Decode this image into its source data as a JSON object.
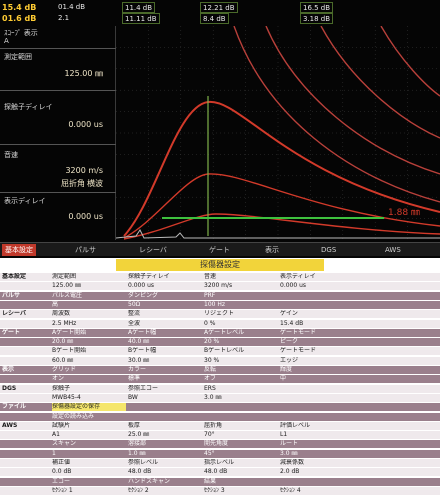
{
  "header": {
    "row1": [
      "15.4 dB",
      "01.4 dB",
      "11.4 dB",
      "12.21 dB",
      "16.5 dB"
    ],
    "row2": [
      "01.6 dB",
      "2.1",
      "11.11 dB",
      "8.4 dB",
      "3.18 dB"
    ]
  },
  "sidebar": {
    "mode_label": "ｽｺｰﾌﾟ 表示",
    "mode_value": "A",
    "range_label": "測定範囲",
    "range_value": "125.00 ㎜",
    "probe_delay_label": "探触子ディレイ",
    "probe_delay_value": "0.000 us",
    "velocity_label": "音速",
    "velocity_value": "3200 m/s",
    "angle_label": "屈折角",
    "angle_value": "横波",
    "display_delay_label": "表示ディレイ",
    "display_delay_value": "0.000 us"
  },
  "plot": {
    "gate_readout": "1.88 ㎜",
    "colors": {
      "echo": "#d23a2a",
      "curve": "#b8403a",
      "gate": "#3ec23e",
      "cursor": "#7fb04a",
      "grid": "#3a3a3a"
    }
  },
  "tabs": [
    "基本設定",
    "パルサ",
    "レシーバ",
    "ゲート",
    "表示",
    "DGS",
    "AWS"
  ],
  "settings": {
    "title": "探傷器設定",
    "rows": [
      {
        "label": "基本設定",
        "cells": [
          "測定範囲",
          "探触子ディレイ",
          "音速",
          "表示ディレイ"
        ],
        "shade": "light"
      },
      {
        "label": "",
        "cells": [
          "125.00 ㎜",
          "0.000 us",
          "3200 m/s",
          "0.000 us"
        ],
        "shade": "light"
      },
      {
        "label": "パルサ",
        "cells": [
          "パルス電圧",
          "ダンピング",
          "PRF",
          ""
        ],
        "shade": "shade"
      },
      {
        "label": "",
        "cells": [
          "高",
          "50Ω",
          "100 Hz",
          ""
        ],
        "shade": "shade"
      },
      {
        "label": "レシーバ",
        "cells": [
          "周波数",
          "整流",
          "リジェクト",
          "ゲイン"
        ],
        "shade": "light"
      },
      {
        "label": "",
        "cells": [
          "2.5 MHz",
          "全波",
          "0 %",
          "15.4 dB"
        ],
        "shade": "light"
      },
      {
        "label": "ゲート",
        "cells": [
          "Aゲート開始",
          "Aゲート幅",
          "Aゲートレベル",
          "ゲートモード"
        ],
        "shade": "shade"
      },
      {
        "label": "",
        "cells": [
          "20.0 ㎜",
          "40.0 ㎜",
          "20 %",
          "ピーク"
        ],
        "shade": "shade"
      },
      {
        "label": "",
        "cells": [
          "Bゲート開始",
          "Bゲート幅",
          "Bゲートレベル",
          "ゲートモード"
        ],
        "shade": "light"
      },
      {
        "label": "",
        "cells": [
          "60.0 ㎜",
          "30.0 ㎜",
          "30 %",
          "エッジ"
        ],
        "shade": "light"
      },
      {
        "label": "表示",
        "cells": [
          "グリッド",
          "カラー",
          "反転",
          "輝度"
        ],
        "shade": "shade"
      },
      {
        "label": "",
        "cells": [
          "オン",
          "標準",
          "オフ",
          "中"
        ],
        "shade": "shade"
      },
      {
        "label": "DGS",
        "cells": [
          "探触子",
          "参照エコー",
          "ERS",
          ""
        ],
        "shade": "light"
      },
      {
        "label": "",
        "cells": [
          "MWB45-4",
          "BW",
          "3.0 ㎜",
          ""
        ],
        "shade": "light"
      },
      {
        "label": "ファイル",
        "cells": [
          "探傷器設定の保存",
          "",
          "",
          ""
        ],
        "shade": "shade"
      },
      {
        "label": "",
        "cells": [
          "設定の読み込み",
          "",
          "",
          ""
        ],
        "shade": "shade"
      },
      {
        "label": "AWS",
        "cells": [
          "試験片",
          "板厚",
          "屈折角",
          "評価レベル"
        ],
        "shade": "light"
      },
      {
        "label": "",
        "cells": [
          "A1",
          "25.0 ㎜",
          "70°",
          "L1"
        ],
        "shade": "light"
      },
      {
        "label": "",
        "cells": [
          "スキャン",
          "溶接部",
          "開先角度",
          "ルート"
        ],
        "shade": "shade"
      },
      {
        "label": "",
        "cells": [
          "1",
          "1.0 ㎜",
          "45°",
          "3.0 ㎜"
        ],
        "shade": "shade"
      },
      {
        "label": "",
        "cells": [
          "補正値",
          "参照レベル",
          "指示レベル",
          "減衰係数"
        ],
        "shade": "light"
      },
      {
        "label": "",
        "cells": [
          "0.0 dB",
          "48.0 dB",
          "48.0 dB",
          "2.0 dB"
        ],
        "shade": "light"
      },
      {
        "label": "",
        "cells": [
          "エコー",
          "ハンドスキャン",
          "結果",
          ""
        ],
        "shade": "shade"
      },
      {
        "label": "",
        "cells": [
          "ｾｸｼｮﾝ 1",
          "ｾｸｼｮﾝ 2",
          "ｾｸｼｮﾝ 3",
          "ｾｸｼｮﾝ 4"
        ],
        "shade": "light"
      }
    ]
  }
}
